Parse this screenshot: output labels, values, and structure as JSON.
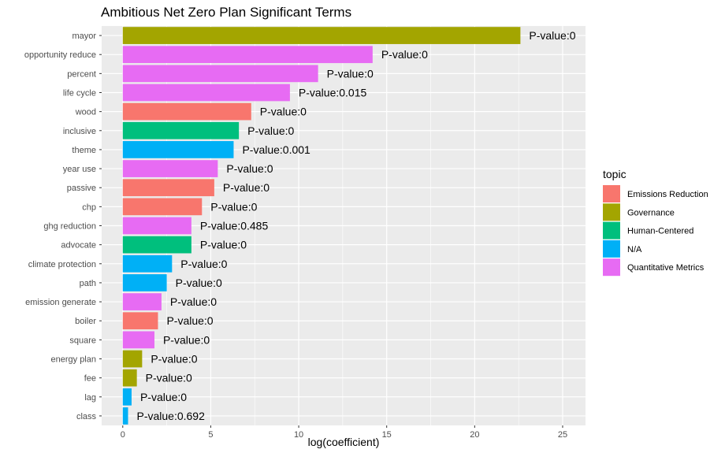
{
  "chart_data": {
    "type": "bar",
    "orientation": "horizontal",
    "title": "Ambitious Net Zero Plan Significant Terms",
    "xlabel": "log(coefficient)",
    "ylabel": "",
    "xlim": [
      -1.2,
      26.3
    ],
    "xticks": [
      0,
      5,
      10,
      15,
      20,
      25
    ],
    "grid": true,
    "legend_position": "right",
    "legend_title": "topic",
    "legend": [
      {
        "name": "Emissions Reduction",
        "color": "#F8766D"
      },
      {
        "name": "Governance",
        "color": "#A3A500"
      },
      {
        "name": "Human-Centered",
        "color": "#00BF7D"
      },
      {
        "name": "N/A",
        "color": "#00B0F6"
      },
      {
        "name": "Quantitative Metrics",
        "color": "#E76BF3"
      }
    ],
    "bars": [
      {
        "term": "mayor",
        "value": 22.6,
        "topic": "Governance",
        "label": "P-value:0"
      },
      {
        "term": "opportunity reduce",
        "value": 14.2,
        "topic": "Quantitative Metrics",
        "label": "P-value:0"
      },
      {
        "term": "percent",
        "value": 11.1,
        "topic": "Quantitative Metrics",
        "label": "P-value:0"
      },
      {
        "term": "life cycle",
        "value": 9.5,
        "topic": "Quantitative Metrics",
        "label": "P-value:0.015"
      },
      {
        "term": "wood",
        "value": 7.3,
        "topic": "Emissions Reduction",
        "label": "P-value:0"
      },
      {
        "term": "inclusive",
        "value": 6.6,
        "topic": "Human-Centered",
        "label": "P-value:0"
      },
      {
        "term": "theme",
        "value": 6.3,
        "topic": "N/A",
        "label": "P-value:0.001"
      },
      {
        "term": "year use",
        "value": 5.4,
        "topic": "Quantitative Metrics",
        "label": "P-value:0"
      },
      {
        "term": "passive",
        "value": 5.2,
        "topic": "Emissions Reduction",
        "label": "P-value:0"
      },
      {
        "term": "chp",
        "value": 4.5,
        "topic": "Emissions Reduction",
        "label": "P-value:0"
      },
      {
        "term": "ghg reduction",
        "value": 3.9,
        "topic": "Quantitative Metrics",
        "label": "P-value:0.485"
      },
      {
        "term": "advocate",
        "value": 3.9,
        "topic": "Human-Centered",
        "label": "P-value:0"
      },
      {
        "term": "climate protection",
        "value": 2.8,
        "topic": "N/A",
        "label": "P-value:0"
      },
      {
        "term": "path",
        "value": 2.5,
        "topic": "N/A",
        "label": "P-value:0"
      },
      {
        "term": "emission generate",
        "value": 2.2,
        "topic": "Quantitative Metrics",
        "label": "P-value:0"
      },
      {
        "term": "boiler",
        "value": 2.0,
        "topic": "Emissions Reduction",
        "label": "P-value:0"
      },
      {
        "term": "square",
        "value": 1.8,
        "topic": "Quantitative Metrics",
        "label": "P-value:0"
      },
      {
        "term": "energy plan",
        "value": 1.1,
        "topic": "Governance",
        "label": "P-value:0"
      },
      {
        "term": "fee",
        "value": 0.8,
        "topic": "Governance",
        "label": "P-value:0"
      },
      {
        "term": "lag",
        "value": 0.5,
        "topic": "N/A",
        "label": "P-value:0"
      },
      {
        "term": "class",
        "value": 0.3,
        "topic": "N/A",
        "label": "P-value:0.692"
      }
    ]
  }
}
